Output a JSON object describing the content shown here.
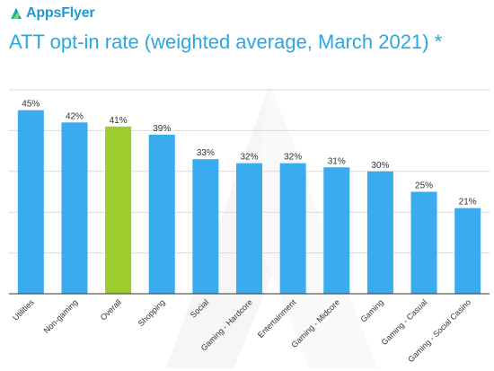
{
  "brand": {
    "name": "AppsFlyer",
    "logo_icon": "appsflyer-logo-icon",
    "color": "#1d9ad6"
  },
  "chart_data": {
    "type": "bar",
    "title": "ATT opt-in rate (weighted average, March 2021) *",
    "categories": [
      "Utilities",
      "Non-gaming",
      "Overall",
      "Shopping",
      "Social",
      "Gaming - Hardcore",
      "Entertainment",
      "Gaming - Midcore",
      "Gaming",
      "Gaming - Casual",
      "Gaming - Social Casino"
    ],
    "values": [
      45,
      42,
      41,
      39,
      33,
      32,
      32,
      31,
      30,
      25,
      21
    ],
    "data_labels": [
      "45%",
      "42%",
      "41%",
      "39%",
      "33%",
      "32%",
      "32%",
      "31%",
      "30%",
      "25%",
      "21%"
    ],
    "highlight_category": "Overall",
    "colors": {
      "bar": "#3aabef",
      "highlight": "#9dcc2c",
      "grid": "#d9d9d9",
      "axis": "#333333"
    },
    "xlabel": "",
    "ylabel": "",
    "ylim": [
      0,
      50
    ],
    "grid": true
  }
}
